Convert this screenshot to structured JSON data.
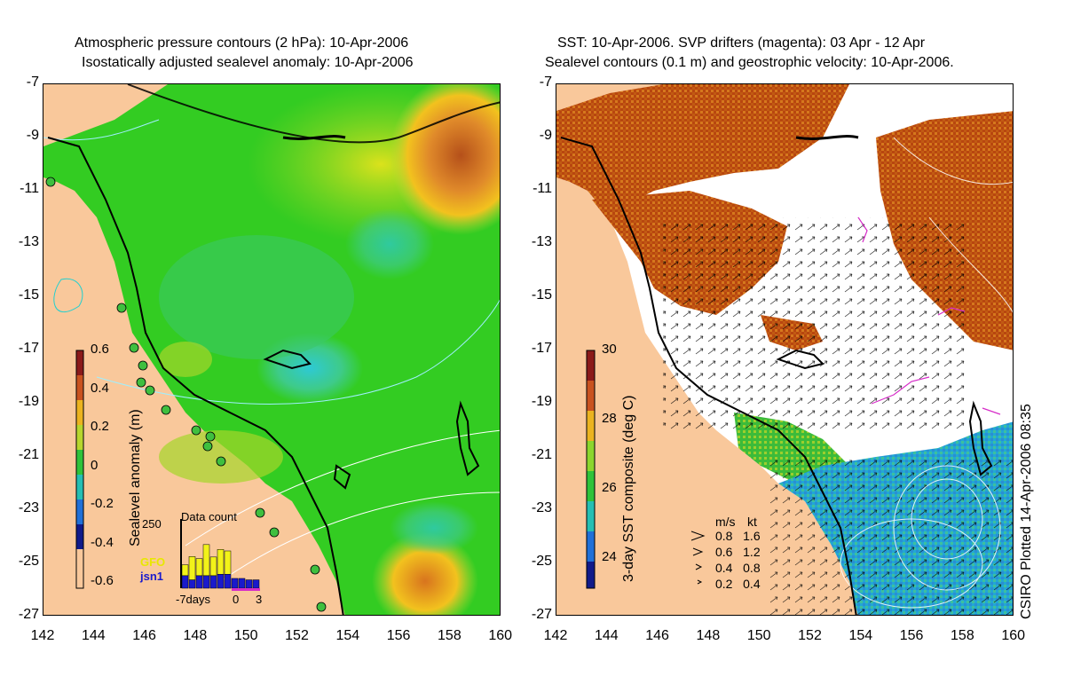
{
  "left_panel": {
    "title_line1": "Atmospheric pressure contours (2 hPa): 10-Apr-2006",
    "title_line2": "Isostatically adjusted sealevel anomaly: 10-Apr-2006",
    "colorbar_label": "Sealevel anomaly (m)",
    "colorbar_ticks": [
      "0.6",
      "0.4",
      "0.2",
      "0",
      "-0.2",
      "-0.4",
      "-0.6"
    ],
    "data_count": {
      "title": "Data count",
      "max_tick": "250",
      "series1": "GFO",
      "series2": "jsn1",
      "xaxis": [
        "-7days",
        "0",
        "3"
      ],
      "gfo_values": [
        0.35,
        0.75,
        0.55,
        1.0,
        0.6,
        0.8,
        0.75,
        0.0,
        0.0,
        0.0,
        0.0
      ],
      "jsn_values": [
        0.45,
        0.3,
        0.45,
        0.45,
        0.45,
        0.5,
        0.5,
        0.35,
        0.35,
        0.3,
        0.3
      ]
    }
  },
  "right_panel": {
    "title_line1": "SST: 10-Apr-2006. SVP drifters (magenta): 03 Apr - 12 Apr",
    "title_line2": "Sealevel contours (0.1 m) and geostrophic velocity: 10-Apr-2006.",
    "colorbar_label": "3-day SST composite (deg C)",
    "colorbar_ticks": [
      "30",
      "28",
      "26",
      "24"
    ],
    "velocity_legend": {
      "header_ms": "m/s",
      "header_kt": "kt",
      "rows": [
        {
          "ms": "0.8",
          "kt": "1.6"
        },
        {
          "ms": "0.6",
          "kt": "1.2"
        },
        {
          "ms": "0.4",
          "kt": "0.8"
        },
        {
          "ms": "0.2",
          "kt": "0.4"
        }
      ]
    }
  },
  "axes": {
    "y_ticks": [
      "-7",
      "-9",
      "-11",
      "-13",
      "-15",
      "-17",
      "-19",
      "-21",
      "-23",
      "-25",
      "-27"
    ],
    "x_ticks": [
      "142",
      "144",
      "146",
      "148",
      "150",
      "152",
      "154",
      "156",
      "158",
      "160"
    ],
    "lat_range": [
      -27,
      -7
    ],
    "lon_range": [
      142,
      160
    ]
  },
  "credit": "CSIRO Plotted 14-Apr-2006 08:35",
  "colors": {
    "land": "#f9c89b",
    "coastline": "#000000",
    "drifters": "#d62cc8"
  }
}
